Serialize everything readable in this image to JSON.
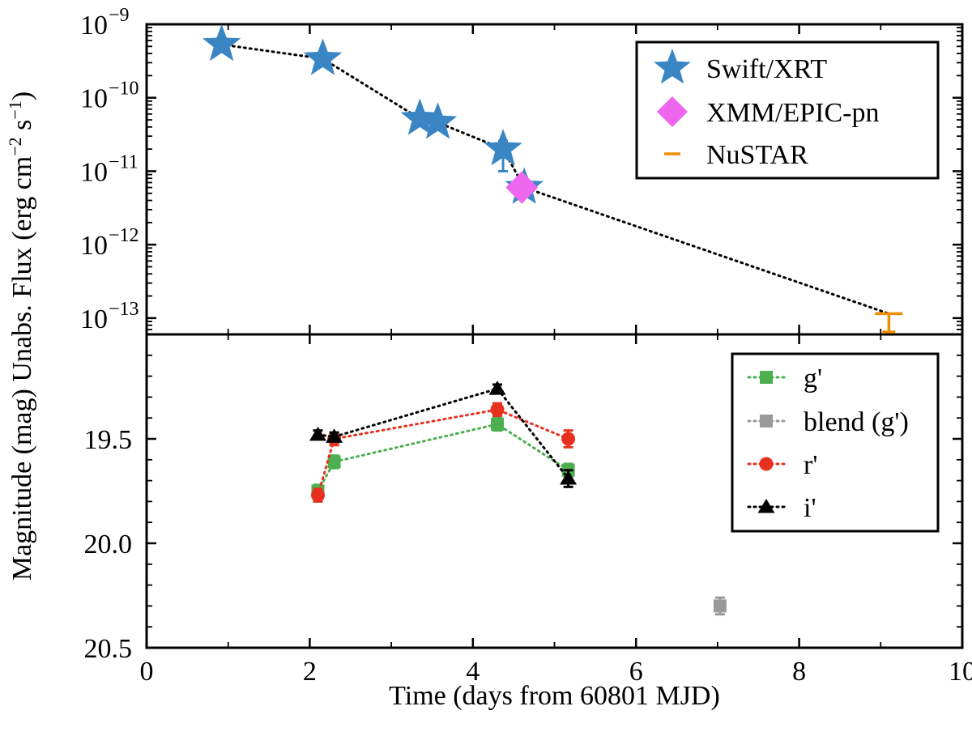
{
  "chart_data": [
    {
      "type": "scatter",
      "panel": "top",
      "ylabel_main": "Unabs. Flux (erg cm",
      "ylabel_sup1": "−2",
      "ylabel_mid": " s",
      "ylabel_sup2": "−1",
      "ylabel_end": ")",
      "yscale": "log",
      "ylim": [
        6e-14,
        1e-09
      ],
      "xlim": [
        0,
        10
      ],
      "y_tick_labels": [
        {
          "base": "10",
          "exp": "−9",
          "value": 1e-09
        },
        {
          "base": "10",
          "exp": "−10",
          "value": 1e-10
        },
        {
          "base": "10",
          "exp": "−11",
          "value": 1e-11
        },
        {
          "base": "10",
          "exp": "−12",
          "value": 1e-12
        },
        {
          "base": "10",
          "exp": "−13",
          "value": 1e-13
        }
      ],
      "legend_position": "top-right",
      "series": [
        {
          "name": "Swift/XRT",
          "marker": "star",
          "color": "#3a86c4",
          "points": [
            {
              "x": 0.92,
              "y": 5.3e-10
            },
            {
              "x": 2.16,
              "y": 3.4e-10
            },
            {
              "x": 3.35,
              "y": 5.2e-11
            },
            {
              "x": 3.57,
              "y": 4.6e-11
            },
            {
              "x": 4.37,
              "y": 2e-11,
              "err_lo": 1e-11,
              "err_hi": 2.6e-11
            },
            {
              "x": 4.63,
              "y": 6e-12
            }
          ]
        },
        {
          "name": "XMM/EPIC-pn",
          "marker": "diamond",
          "color": "#ee66ee",
          "points": [
            {
              "x": 4.6,
              "y": 6e-12
            }
          ]
        },
        {
          "name": "NuSTAR",
          "marker": "upper-limit",
          "color": "#f08c00",
          "points": [
            {
              "x": 9.1,
              "y": 1.15e-13
            }
          ]
        }
      ],
      "model_line": {
        "style": "dotted",
        "color": "#000000",
        "points": [
          {
            "x": 0.92,
            "y": 5.3e-10
          },
          {
            "x": 2.16,
            "y": 3.4e-10
          },
          {
            "x": 3.35,
            "y": 5.2e-11
          },
          {
            "x": 3.57,
            "y": 4.6e-11
          },
          {
            "x": 4.37,
            "y": 2e-11
          },
          {
            "x": 4.63,
            "y": 6e-12
          },
          {
            "x": 9.1,
            "y": 1.15e-13
          }
        ]
      }
    },
    {
      "type": "line",
      "panel": "bottom",
      "ylabel": "Magnitude (mag)",
      "xlabel": "Time (days from 60801 MJD)",
      "ylim": [
        20.5,
        19.0
      ],
      "y_inverted": true,
      "xlim": [
        0,
        10
      ],
      "x_tick_labels": [
        "0",
        "2",
        "4",
        "6",
        "8",
        "10"
      ],
      "x_tick_values": [
        0,
        2,
        4,
        6,
        8,
        10
      ],
      "y_tick_labels": [
        "19.5",
        "20.0",
        "20.5"
      ],
      "y_tick_values": [
        19.5,
        20.0,
        20.5
      ],
      "legend_position": "top-right",
      "series": [
        {
          "name": "g'",
          "marker": "square",
          "color": "#4caf50",
          "line": "dotted",
          "points": [
            {
              "x": 2.1,
              "y": 19.75,
              "err": 0.03
            },
            {
              "x": 2.3,
              "y": 19.61,
              "err": 0.03
            },
            {
              "x": 4.3,
              "y": 19.43,
              "err": 0.03
            },
            {
              "x": 5.17,
              "y": 19.65,
              "err": 0.03
            }
          ]
        },
        {
          "name": "blend (g')",
          "marker": "square",
          "color": "#999999",
          "line": "dotted",
          "points": [
            {
              "x": 7.03,
              "y": 20.3,
              "err": 0.04
            }
          ]
        },
        {
          "name": "r'",
          "marker": "circle",
          "color": "#e8301e",
          "line": "dotted",
          "points": [
            {
              "x": 2.1,
              "y": 19.77,
              "err": 0.03
            },
            {
              "x": 2.3,
              "y": 19.5,
              "err": 0.03
            },
            {
              "x": 4.3,
              "y": 19.36,
              "err": 0.03
            },
            {
              "x": 5.17,
              "y": 19.5,
              "err": 0.04
            }
          ]
        },
        {
          "name": "i'",
          "marker": "triangle",
          "color": "#000000",
          "line": "dotted",
          "points": [
            {
              "x": 2.1,
              "y": 19.48,
              "err": 0.02
            },
            {
              "x": 2.3,
              "y": 19.49,
              "err": 0.02
            },
            {
              "x": 4.3,
              "y": 19.26,
              "err": 0.02
            },
            {
              "x": 5.17,
              "y": 19.69,
              "err": 0.04
            }
          ]
        }
      ]
    }
  ]
}
